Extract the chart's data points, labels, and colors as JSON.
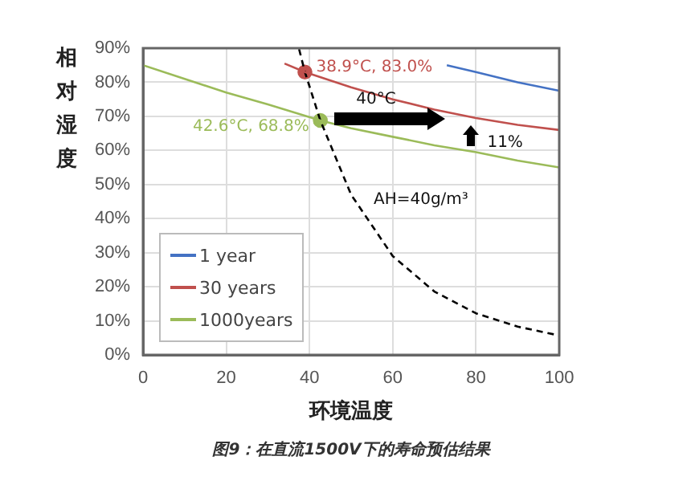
{
  "chart_data": {
    "type": "line",
    "ylabel": "相对湿度",
    "xlabel": "环境温度",
    "xlim": [
      0,
      100
    ],
    "xticks": [
      0,
      20,
      40,
      60,
      80,
      100
    ],
    "ylim": [
      0,
      90
    ],
    "yticks": [
      {
        "value": 0,
        "label": "0%"
      },
      {
        "value": 10,
        "label": "10%"
      },
      {
        "value": 20,
        "label": "20%"
      },
      {
        "value": 30,
        "label": "30%"
      },
      {
        "value": 40,
        "label": "40%"
      },
      {
        "value": 50,
        "label": "50%"
      },
      {
        "value": 60,
        "label": "60%"
      },
      {
        "value": 70,
        "label": "70%"
      },
      {
        "value": 80,
        "label": "80%"
      },
      {
        "value": 90,
        "label": "90%"
      }
    ],
    "grid": true,
    "legend": "bottom left",
    "marker": "none",
    "series": [
      {
        "name": "1 year",
        "color": "#4472c4",
        "x": [
          73,
          80,
          90,
          100
        ],
        "values": [
          85,
          83,
          80,
          77.5
        ]
      },
      {
        "name": "30 years",
        "color": "#c0504d",
        "x": [
          34,
          38.9,
          50,
          60,
          70,
          80,
          90,
          100
        ],
        "values": [
          85.5,
          83,
          78.5,
          75,
          72,
          69.5,
          67.5,
          66
        ]
      },
      {
        "name": "1000years",
        "color": "#9bbb59",
        "x": [
          0,
          10,
          20,
          30,
          42.6,
          50,
          60,
          70,
          80,
          90,
          100
        ],
        "values": [
          85,
          81,
          77,
          73.5,
          68.8,
          66.5,
          64,
          61.5,
          59.5,
          57,
          55
        ]
      },
      {
        "name": "AH=40g/m³",
        "line_style": "dashed",
        "color": "#000000",
        "x": [
          37.5,
          38.9,
          42.6,
          50,
          60,
          70,
          80,
          90,
          100
        ],
        "values": [
          89.7,
          83,
          68.8,
          47,
          29,
          18.6,
          12.2,
          8.3,
          5.7
        ]
      },
      {
        "type": "scatter",
        "marker": "circle",
        "color": "#c0504d",
        "x": [
          38.9
        ],
        "values": [
          83
        ],
        "value_labels": [
          "38.9°C, 83.0%"
        ]
      },
      {
        "type": "scatter",
        "marker": "circle",
        "color": "#9bbb59",
        "x": [
          42.6
        ],
        "values": [
          68.8
        ],
        "value_labels": [
          "42.6°C, 68.8%"
        ]
      }
    ],
    "annotations": [
      "40°C",
      "11%",
      "图9：在直流1500V下的寿命预估结果"
    ]
  }
}
